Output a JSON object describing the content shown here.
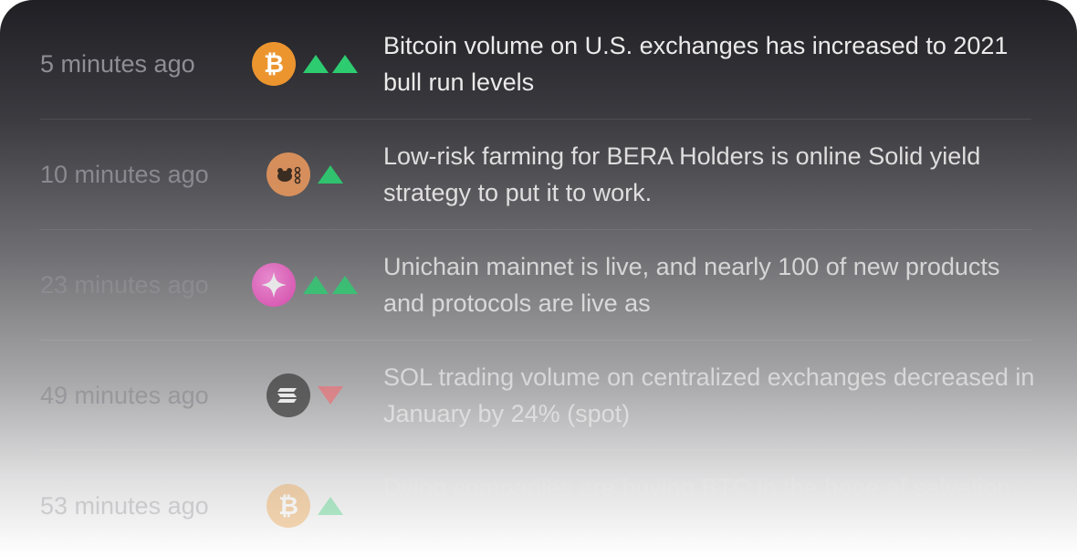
{
  "feed": {
    "items": [
      {
        "time": "5 minutes ago",
        "icon": "bitcoin-icon",
        "icon_color": "#f0952c",
        "sentiment": "up",
        "arrow_count": 2,
        "headline": "Bitcoin volume on U.S. exchanges has increased to 2021 bull run levels"
      },
      {
        "time": "10 minutes ago",
        "icon": "bera-bear-icon",
        "icon_color": "#e3955a",
        "sentiment": "up",
        "arrow_count": 1,
        "headline": "Low-risk farming for BERA Holders is online Solid yield strategy to put it to work."
      },
      {
        "time": "23 minutes ago",
        "icon": "unichain-sparkle-icon",
        "icon_color": "#f043b8",
        "sentiment": "up",
        "arrow_count": 2,
        "headline": "Unichain mainnet is live, and nearly 100 of new products and protocols are live as"
      },
      {
        "time": "49 minutes ago",
        "icon": "solana-icon",
        "icon_color": "#3a3a3a",
        "sentiment": "down",
        "arrow_count": 1,
        "headline": "SOL trading volume on centralized exchanges decreased in January by 24% (spot)"
      },
      {
        "time": "53 minutes ago",
        "icon": "bitcoin-icon",
        "icon_color": "#f0952c",
        "sentiment": "up",
        "arrow_count": 1,
        "headline": "Dying companies are buying BTC in the hope of salvation"
      }
    ]
  }
}
